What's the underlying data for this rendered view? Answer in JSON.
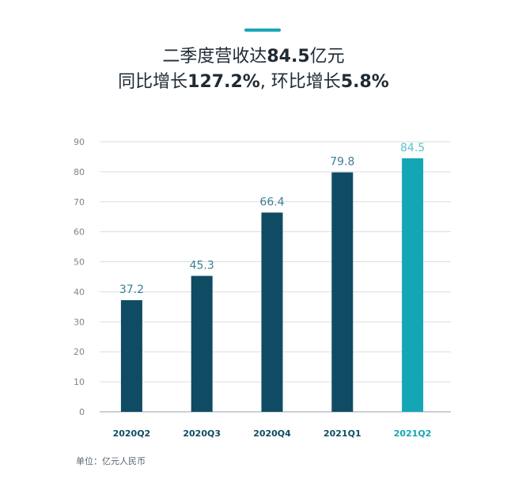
{
  "headline": {
    "line1_prefix": "二季度营收达",
    "line1_value": "84.5",
    "line1_suffix": "亿元",
    "line2_prefix": "同比增长",
    "line2_value1": "127.2%",
    "line2_mid": ", 环比增长",
    "line2_value2": "5.8%"
  },
  "unit_note": "单位：亿元人民币",
  "colors": {
    "accent": "#1aa5b5",
    "bar_dark": "#0f4c63",
    "bar_highlight": "#13a7b6",
    "label_dark": "#3d7f93",
    "label_highlight": "#5cc0cb",
    "grid": "#d9dde0",
    "axis_text": "#7c868d"
  },
  "chart_data": {
    "type": "bar",
    "categories": [
      "2020Q2",
      "2020Q3",
      "2020Q4",
      "2021Q1",
      "2021Q2"
    ],
    "values": [
      37.2,
      45.3,
      66.4,
      79.8,
      84.5
    ],
    "value_labels": [
      "37.2",
      "45.3",
      "66.4",
      "79.8",
      "84.5"
    ],
    "highlight_index": 4,
    "ylim": [
      0,
      90
    ],
    "yticks": [
      0,
      10,
      20,
      30,
      40,
      50,
      60,
      70,
      80,
      90
    ],
    "grid": true
  }
}
